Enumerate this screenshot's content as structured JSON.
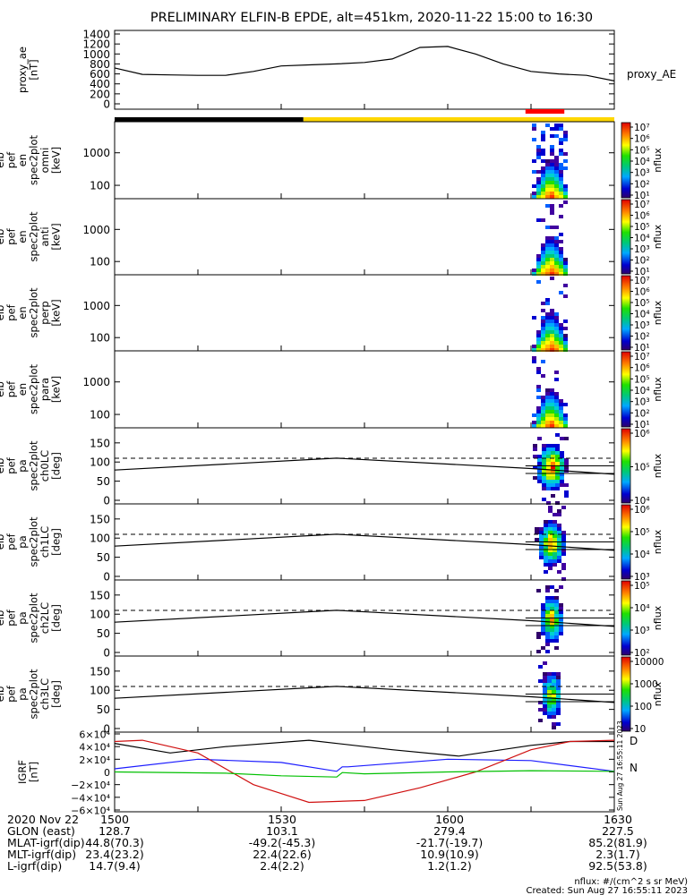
{
  "title": "PRELIMINARY ELFIN-B EPDE, alt=451km, 2020-11-22 15:00 to 16:30",
  "colors": {
    "axis": "#000000",
    "ae": "#000000",
    "bar_dark": "#000000",
    "bar_sun": "#ffd700",
    "bar_science": "#ff0000",
    "igrf_x": "#000000",
    "igrf_y": "#1c1cff",
    "igrf_z": "#d01010",
    "igrf_total": "#00c000"
  },
  "panels": [
    {
      "id": "proxy_ae",
      "ylabel": [
        "proxy_ae",
        "[nT]"
      ],
      "yticks": [
        "1400",
        "1200",
        "1000",
        "800",
        "600",
        "400",
        "200",
        "0"
      ],
      "right_label": "proxy_AE"
    },
    {
      "id": "omni",
      "ylabel": [
        "elb",
        "pef",
        "en",
        "spec2plot",
        "omni",
        "[keV]"
      ],
      "yticks": [
        "1000",
        "100"
      ],
      "cbar_ticks": [
        "10⁷",
        "10⁶",
        "10⁵",
        "10⁴",
        "10³",
        "10²",
        "10¹"
      ],
      "cbar_label": "nflux"
    },
    {
      "id": "anti",
      "ylabel": [
        "elb",
        "pef",
        "en",
        "spec2plot",
        "anti",
        "[keV]"
      ],
      "yticks": [
        "1000",
        "100"
      ],
      "cbar_ticks": [
        "10⁷",
        "10⁶",
        "10⁵",
        "10⁴",
        "10³",
        "10²",
        "10¹"
      ],
      "cbar_label": "nflux"
    },
    {
      "id": "perp",
      "ylabel": [
        "elb",
        "pef",
        "en",
        "spec2plot",
        "perp",
        "[keV]"
      ],
      "yticks": [
        "1000",
        "100"
      ],
      "cbar_ticks": [
        "10⁷",
        "10⁶",
        "10⁵",
        "10⁴",
        "10³",
        "10²",
        "10¹"
      ],
      "cbar_label": "nflux"
    },
    {
      "id": "para",
      "ylabel": [
        "elb",
        "pef",
        "en",
        "spec2plot",
        "para",
        "[keV]"
      ],
      "yticks": [
        "1000",
        "100"
      ],
      "cbar_ticks": [
        "10⁷",
        "10⁶",
        "10⁵",
        "10⁴",
        "10³",
        "10²",
        "10¹"
      ],
      "cbar_label": "nflux"
    },
    {
      "id": "ch0LC",
      "ylabel": [
        "elb",
        "pef",
        "pa",
        "spec2plot",
        "ch0LC",
        "[deg]"
      ],
      "yticks": [
        "150",
        "100",
        "50",
        "0"
      ],
      "cbar_ticks": [
        "10⁶",
        "10⁵",
        "10⁴"
      ],
      "cbar_label": "nflux"
    },
    {
      "id": "ch1LC",
      "ylabel": [
        "elb",
        "pef",
        "pa",
        "spec2plot",
        "ch1LC",
        "[deg]"
      ],
      "yticks": [
        "150",
        "100",
        "50",
        "0"
      ],
      "cbar_ticks": [
        "10⁶",
        "10⁵",
        "10⁴",
        "10³"
      ],
      "cbar_label": "nflux"
    },
    {
      "id": "ch2LC",
      "ylabel": [
        "elb",
        "pef",
        "pa",
        "spec2plot",
        "ch2LC",
        "[deg]"
      ],
      "yticks": [
        "150",
        "100",
        "50",
        "0"
      ],
      "cbar_ticks": [
        "10⁵",
        "10⁴",
        "10³",
        "10²"
      ],
      "cbar_label": "nflux"
    },
    {
      "id": "ch3LC",
      "ylabel": [
        "elb",
        "pef",
        "pa",
        "spec2plot",
        "ch3LC",
        "[deg]"
      ],
      "yticks": [
        "150",
        "100",
        "50",
        "0"
      ],
      "cbar_ticks": [
        "10000",
        "1000",
        "100",
        "10"
      ],
      "cbar_label": "nflux"
    },
    {
      "id": "igrf",
      "ylabel": [
        "IGRF",
        "[nT]"
      ],
      "yticks": [
        "6×10⁴",
        "4×10⁴",
        "2×10⁴",
        "0",
        "−2×10⁴",
        "−4×10⁴",
        "−6×10⁴"
      ],
      "legend": [
        "D",
        "N"
      ]
    }
  ],
  "chart_data": {
    "type": "line",
    "x_range": [
      "15:00",
      "16:30"
    ],
    "proxy_ae": {
      "ylim": [
        0,
        1400
      ],
      "x_min": [
        0,
        5,
        10,
        15,
        20,
        25,
        30,
        35,
        40,
        45,
        50,
        55,
        60,
        65,
        70,
        75,
        80,
        85,
        90
      ],
      "values": [
        720,
        590,
        580,
        570,
        570,
        650,
        760,
        780,
        800,
        830,
        900,
        1130,
        1150,
        1000,
        800,
        650,
        600,
        570,
        460
      ]
    },
    "spectrogram": {
      "active_window_min": [
        75,
        80
      ],
      "omni": {
        "ylim_keV": [
          50,
          7000
        ],
        "peak_keV": 100,
        "max_flux": 10000000.0
      },
      "anti": {
        "ylim_keV": [
          50,
          7000
        ],
        "peak_keV": 100,
        "max_flux": 10000000.0
      },
      "perp": {
        "ylim_keV": [
          50,
          7000
        ],
        "peak_keV": 100,
        "max_flux": 10000000.0
      },
      "para": {
        "ylim_keV": [
          50,
          7000
        ],
        "peak_keV": 100,
        "max_flux": 10000000.0
      }
    },
    "pitch_angle": {
      "ylim_deg": [
        0,
        180
      ],
      "loss_cone_deg_min": [
        0,
        40,
        75,
        90
      ],
      "loss_cone_deg": [
        79,
        110,
        83,
        68
      ],
      "dashed_deg": 110,
      "ref_lines_deg": [
        90,
        70
      ]
    },
    "igrf": {
      "ylim_nT": [
        -60000,
        60000
      ],
      "series": [
        {
          "key": "x",
          "x_min": [
            0,
            10,
            20,
            35,
            50,
            62,
            75,
            82,
            90
          ],
          "values": [
            45000,
            30000,
            40000,
            50000,
            35000,
            25000,
            42000,
            48000,
            48000
          ]
        },
        {
          "key": "y",
          "x_min": [
            0,
            15,
            30,
            40,
            41,
            42,
            60,
            75,
            90
          ],
          "values": [
            5000,
            20000,
            15000,
            1000,
            8000,
            8000,
            20000,
            18000,
            1000
          ]
        },
        {
          "key": "z",
          "x_min": [
            0,
            5,
            15,
            25,
            35,
            45,
            55,
            65,
            75,
            82,
            90
          ],
          "values": [
            48000,
            50000,
            30000,
            -20000,
            -48000,
            -45000,
            -25000,
            0,
            35000,
            48000,
            50000
          ]
        },
        {
          "key": "total",
          "x_min": [
            0,
            20,
            30,
            40,
            41,
            45,
            60,
            75,
            90
          ],
          "values": [
            0,
            -2000,
            -6000,
            -8000,
            -1000,
            -3000,
            0,
            2000,
            1000
          ]
        }
      ]
    },
    "orbit_bar": [
      {
        "state": "dark",
        "from_min": 0,
        "to_min": 34
      },
      {
        "state": "sunlit",
        "from_min": 34,
        "to_min": 90
      },
      {
        "state": "science",
        "from_min": 74,
        "to_min": 81
      }
    ]
  },
  "footer": {
    "rows": [
      [
        "2020 Nov 22",
        "1500",
        "1530",
        "1600",
        "1630"
      ],
      [
        "GLON (east)",
        "128.7",
        "103.1",
        "279.4",
        "227.5"
      ],
      [
        "MLAT-igrf(dip)",
        "44.8(70.3)",
        "-49.2(-45.3)",
        "-21.7(-19.7)",
        "85.2(81.9)"
      ],
      [
        "MLT-igrf(dip)",
        "23.4(23.2)",
        "22.4(22.6)",
        "10.9(10.9)",
        "2.3(1.7)"
      ],
      [
        "L-igrf(dip)",
        "14.7(9.4)",
        "2.4(2.2)",
        "1.2(1.2)",
        "92.5(53.8)"
      ]
    ],
    "units_note": "nflux: #/(cm^2 s sr MeV)",
    "created": "Created: Sun Aug 27 16:55:11 2023",
    "side_stamp": "Sun Aug 27 16:55:11 2023"
  }
}
